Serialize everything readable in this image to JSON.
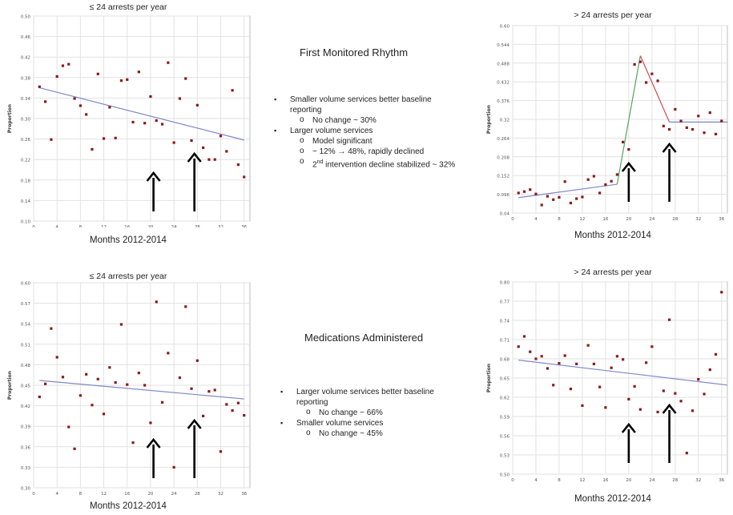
{
  "chart_data": [
    {
      "type": "scatter",
      "title": "≤ 24 arrests per year",
      "xlabel": "Months 2012-2014",
      "ylabel": "Proportion",
      "xlim": [
        0,
        37
      ],
      "ylim": [
        0.1,
        0.5
      ],
      "x_ticks": [
        0,
        4,
        8,
        12,
        16,
        20,
        24,
        28,
        32,
        36
      ],
      "y_ticks": [
        "0.10",
        "0.14",
        "0.18",
        "0.22",
        "0.26",
        "0.30",
        "0.34",
        "0.38",
        "0.42",
        "0.46",
        "0.50"
      ],
      "grid": true,
      "points": [
        [
          1,
          0.362
        ],
        [
          2,
          0.333
        ],
        [
          3,
          0.259
        ],
        [
          4,
          0.382
        ],
        [
          5,
          0.403
        ],
        [
          6,
          0.406
        ],
        [
          7,
          0.339
        ],
        [
          8,
          0.325
        ],
        [
          9,
          0.308
        ],
        [
          10,
          0.24
        ],
        [
          11,
          0.387
        ],
        [
          12,
          0.261
        ],
        [
          13,
          0.322
        ],
        [
          14,
          0.262
        ],
        [
          15,
          0.374
        ],
        [
          16,
          0.376
        ],
        [
          17,
          0.293
        ],
        [
          18,
          0.391
        ],
        [
          19,
          0.291
        ],
        [
          20,
          0.343
        ],
        [
          21,
          0.296
        ],
        [
          22,
          0.289
        ],
        [
          23,
          0.409
        ],
        [
          24,
          0.253
        ],
        [
          25,
          0.339
        ],
        [
          26,
          0.378
        ],
        [
          27,
          0.257
        ],
        [
          28,
          0.326
        ],
        [
          29,
          0.243
        ],
        [
          30,
          0.22
        ],
        [
          31,
          0.22
        ],
        [
          32,
          0.266
        ],
        [
          33,
          0.236
        ],
        [
          34,
          0.355
        ],
        [
          35,
          0.21
        ],
        [
          36,
          0.186
        ]
      ],
      "trend": [
        [
          1,
          0.36
        ],
        [
          36,
          0.258
        ]
      ],
      "arrows": [
        20.5,
        27.5
      ]
    },
    {
      "type": "scatter",
      "title": "> 24 arrests per year",
      "xlabel": "Months 2012-2014",
      "ylabel": "Proportion",
      "xlim": [
        0,
        37
      ],
      "ylim": [
        0.04,
        0.6
      ],
      "x_ticks": [
        0,
        4,
        8,
        12,
        16,
        20,
        24,
        28,
        32,
        36
      ],
      "y_ticks": [
        "0.04",
        "0.096",
        "0.152",
        "0.208",
        "0.264",
        "0.32",
        "0.376",
        "0.432",
        "0.488",
        "0.544",
        "0.60"
      ],
      "grid": true,
      "points": [
        [
          1,
          0.1
        ],
        [
          2,
          0.104
        ],
        [
          3,
          0.11
        ],
        [
          4,
          0.097
        ],
        [
          5,
          0.064
        ],
        [
          6,
          0.09
        ],
        [
          7,
          0.08
        ],
        [
          8,
          0.087
        ],
        [
          9,
          0.134
        ],
        [
          10,
          0.07
        ],
        [
          11,
          0.083
        ],
        [
          12,
          0.088
        ],
        [
          13,
          0.14
        ],
        [
          14,
          0.15
        ],
        [
          15,
          0.1
        ],
        [
          16,
          0.125
        ],
        [
          17,
          0.135
        ],
        [
          18,
          0.155
        ],
        [
          19,
          0.252
        ],
        [
          20,
          0.23
        ],
        [
          21,
          0.484
        ],
        [
          22,
          0.492
        ],
        [
          23,
          0.43
        ],
        [
          24,
          0.456
        ],
        [
          25,
          0.435
        ],
        [
          26,
          0.3
        ],
        [
          27,
          0.29
        ],
        [
          28,
          0.35
        ],
        [
          29,
          0.315
        ],
        [
          30,
          0.295
        ],
        [
          31,
          0.29
        ],
        [
          32,
          0.33
        ],
        [
          33,
          0.28
        ],
        [
          34,
          0.34
        ],
        [
          35,
          0.276
        ],
        [
          36,
          0.315
        ]
      ],
      "segments": [
        {
          "color": "#7f86c8",
          "points": [
            [
              1,
              0.086
            ],
            [
              18,
              0.126
            ]
          ]
        },
        {
          "color": "#55a35f",
          "points": [
            [
              18,
              0.126
            ],
            [
              22,
              0.51
            ]
          ]
        },
        {
          "color": "#c94f4f",
          "points": [
            [
              22,
              0.51
            ],
            [
              27,
              0.312
            ]
          ]
        },
        {
          "color": "#7f86c8",
          "points": [
            [
              27,
              0.312
            ],
            [
              37,
              0.312
            ]
          ]
        }
      ],
      "arrows": [
        20,
        27
      ]
    },
    {
      "type": "scatter",
      "title": "≤ 24 arrests per year",
      "xlabel": "Months 2012-2014",
      "ylabel": "Proportion",
      "xlim": [
        0,
        37
      ],
      "ylim": [
        0.3,
        0.6
      ],
      "x_ticks": [
        0,
        4,
        8,
        12,
        16,
        20,
        24,
        28,
        32,
        36
      ],
      "y_ticks": [
        "0.30",
        "0.33",
        "0.36",
        "0.39",
        "0.42",
        "0.45",
        "0.48",
        "0.51",
        "0.54",
        "0.57",
        "0.60"
      ],
      "grid": true,
      "points": [
        [
          1,
          0.433
        ],
        [
          2,
          0.452
        ],
        [
          3,
          0.533
        ],
        [
          4,
          0.491
        ],
        [
          5,
          0.462
        ],
        [
          6,
          0.389
        ],
        [
          7,
          0.357
        ],
        [
          8,
          0.435
        ],
        [
          9,
          0.466
        ],
        [
          10,
          0.421
        ],
        [
          11,
          0.459
        ],
        [
          12,
          0.408
        ],
        [
          13,
          0.476
        ],
        [
          14,
          0.454
        ],
        [
          15,
          0.539
        ],
        [
          16,
          0.451
        ],
        [
          17,
          0.366
        ],
        [
          18,
          0.468
        ],
        [
          19,
          0.45
        ],
        [
          20,
          0.395
        ],
        [
          21,
          0.572
        ],
        [
          22,
          0.425
        ],
        [
          23,
          0.497
        ],
        [
          24,
          0.33
        ],
        [
          25,
          0.461
        ],
        [
          26,
          0.565
        ],
        [
          27,
          0.445
        ],
        [
          28,
          0.486
        ],
        [
          29,
          0.405
        ],
        [
          30,
          0.441
        ],
        [
          31,
          0.443
        ],
        [
          32,
          0.353
        ],
        [
          33,
          0.422
        ],
        [
          34,
          0.413
        ],
        [
          35,
          0.424
        ],
        [
          36,
          0.406
        ]
      ],
      "trend": [
        [
          1,
          0.457
        ],
        [
          36,
          0.43
        ]
      ],
      "arrows": [
        20.5,
        27.5
      ]
    },
    {
      "type": "scatter",
      "title": "> 24 arrests per year",
      "xlabel": "Months 2012-2014",
      "ylabel": "Proportion",
      "xlim": [
        0,
        37
      ],
      "ylim": [
        0.5,
        0.8
      ],
      "x_ticks": [
        0,
        4,
        8,
        12,
        16,
        20,
        24,
        28,
        32,
        36
      ],
      "y_ticks": [
        "0.50",
        "0.53",
        "0.56",
        "0.59",
        "0.62",
        "0.65",
        "0.68",
        "0.71",
        "0.74",
        "0.77",
        "0.80"
      ],
      "grid": true,
      "points": [
        [
          1,
          0.699
        ],
        [
          2,
          0.715
        ],
        [
          3,
          0.691
        ],
        [
          4,
          0.68
        ],
        [
          5,
          0.684
        ],
        [
          6,
          0.665
        ],
        [
          7,
          0.639
        ],
        [
          8,
          0.673
        ],
        [
          9,
          0.685
        ],
        [
          10,
          0.633
        ],
        [
          11,
          0.672
        ],
        [
          12,
          0.607
        ],
        [
          13,
          0.701
        ],
        [
          14,
          0.672
        ],
        [
          15,
          0.636
        ],
        [
          16,
          0.604
        ],
        [
          17,
          0.666
        ],
        [
          18,
          0.684
        ],
        [
          19,
          0.679
        ],
        [
          20,
          0.617
        ],
        [
          21,
          0.637
        ],
        [
          22,
          0.601
        ],
        [
          23,
          0.674
        ],
        [
          24,
          0.699
        ],
        [
          25,
          0.597
        ],
        [
          26,
          0.63
        ],
        [
          27,
          0.741
        ],
        [
          28,
          0.626
        ],
        [
          29,
          0.614
        ],
        [
          30,
          0.533
        ],
        [
          31,
          0.599
        ],
        [
          32,
          0.648
        ],
        [
          33,
          0.625
        ],
        [
          34,
          0.663
        ],
        [
          35,
          0.687
        ],
        [
          36,
          0.784
        ]
      ],
      "trend": [
        [
          1,
          0.678
        ],
        [
          37,
          0.639
        ]
      ],
      "arrows": [
        20,
        27
      ]
    }
  ],
  "sections": [
    {
      "title": "First Monitored  Rhythm",
      "notes": [
        {
          "level": 1,
          "text": "Smaller volume services better baseline reporting"
        },
        {
          "level": 2,
          "text": "No change ~ 30%"
        },
        {
          "level": 1,
          "text": "Larger volume services"
        },
        {
          "level": 2,
          "text": "Model significant"
        },
        {
          "level": 2,
          "text": "~ 12% → 48%, rapidly declined"
        },
        {
          "level": 2,
          "text": "2nd intervention decline stabilized ~ 32%"
        }
      ]
    },
    {
      "title": "Medications Administered",
      "notes": [
        {
          "level": 1,
          "text": "Larger volume services better baseline reporting"
        },
        {
          "level": 2,
          "text": "No change ~ 66%"
        },
        {
          "level": 1,
          "text": "Smaller volume services"
        },
        {
          "level": 2,
          "text": "No change ~ 45%"
        }
      ]
    }
  ],
  "colors": {
    "point": "#8b1a1a",
    "trend": "#8088c8",
    "grid": "#e2e2e2",
    "arrow": "#000000"
  }
}
